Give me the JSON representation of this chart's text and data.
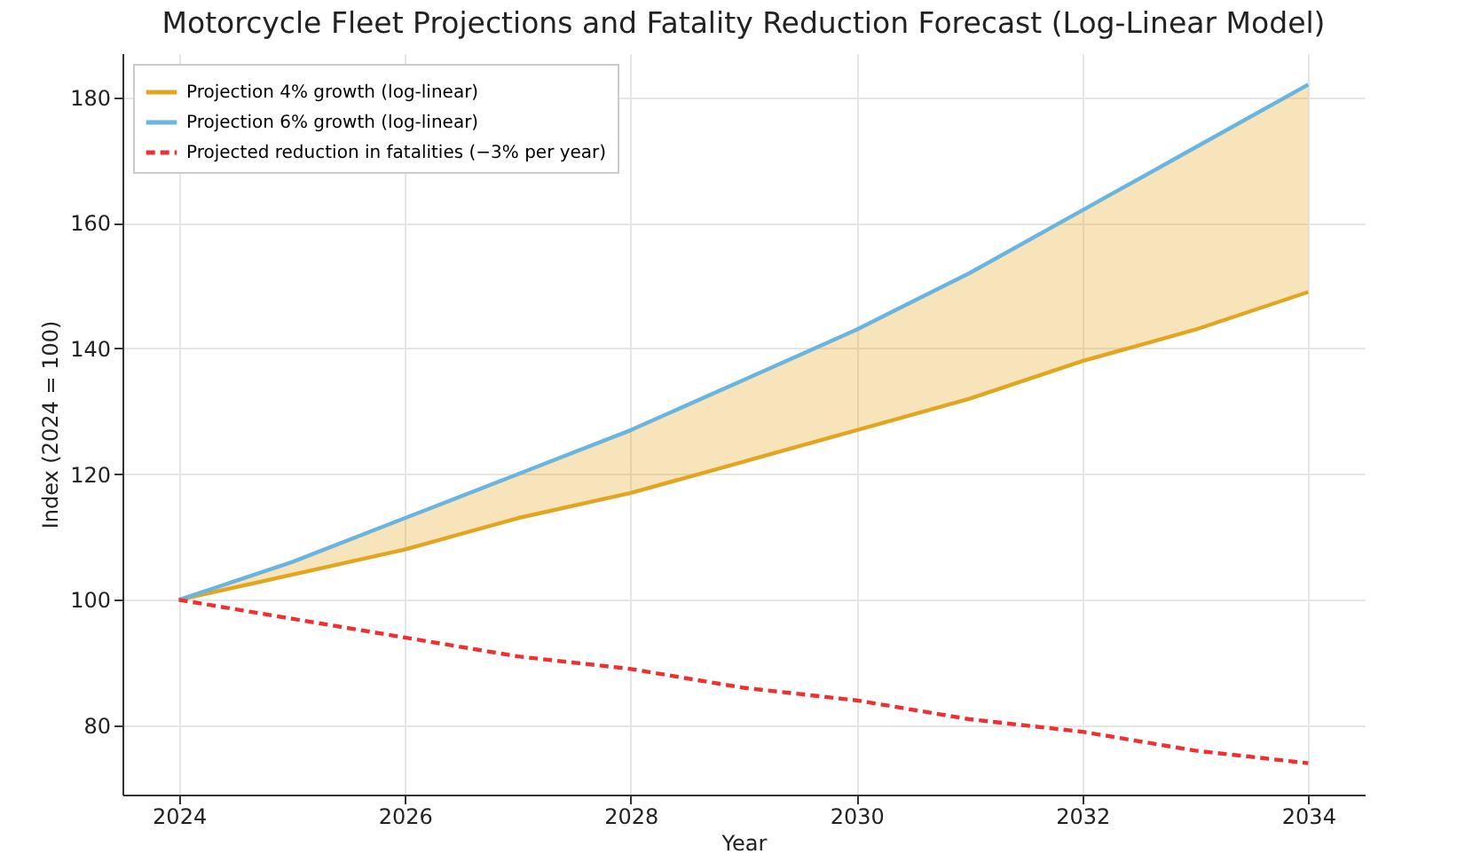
{
  "chart_data": {
    "type": "line",
    "title": "Motorcycle Fleet Projections and Fatality Reduction Forecast (Log-Linear Model)",
    "xlabel": "Year",
    "ylabel": "Index (2024 = 100)",
    "x": [
      2024,
      2025,
      2026,
      2027,
      2028,
      2029,
      2030,
      2031,
      2032,
      2033,
      2034
    ],
    "series": [
      {
        "name": "Projection 4% growth (log-linear)",
        "color": "#e3a51f",
        "values": [
          100,
          104,
          108,
          113,
          117,
          122,
          127,
          132,
          138,
          143,
          149
        ],
        "lower": [
          100,
          104,
          108,
          113,
          117,
          122,
          127,
          132,
          138,
          143,
          149
        ],
        "upper": [
          100,
          106,
          113,
          120,
          127,
          135,
          143,
          152,
          162,
          172,
          182
        ]
      },
      {
        "name": "Projection 6% growth (log-linear)",
        "color": "#6ab4e0",
        "values": [
          100,
          106,
          113,
          120,
          127,
          135,
          143,
          152,
          162,
          172,
          182
        ]
      },
      {
        "name": "Projected reduction in fatalities (−3% per year)",
        "color": "#f03030",
        "line_style": "dashed",
        "values": [
          100,
          97,
          94,
          91,
          89,
          86,
          84,
          81,
          79,
          76,
          74
        ]
      }
    ],
    "xlim": [
      2023.5,
      2034.5
    ],
    "xticks": [
      2024,
      2026,
      2028,
      2030,
      2032,
      2034
    ],
    "ylim": [
      69,
      187
    ],
    "yticks": [
      80,
      100,
      120,
      140,
      160,
      180
    ],
    "grid": true,
    "legend": "top left"
  }
}
